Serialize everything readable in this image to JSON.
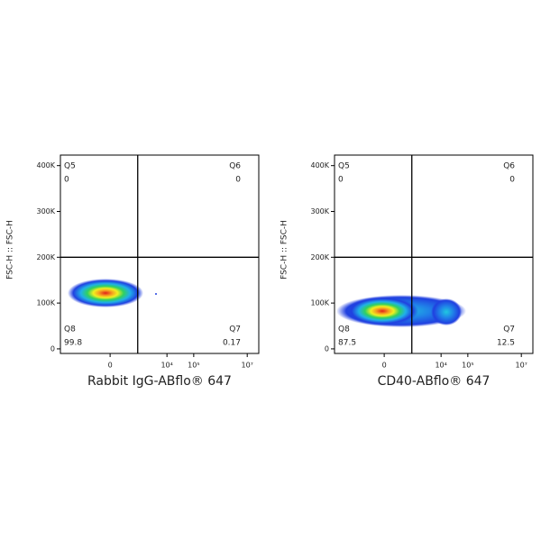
{
  "chart_data": [
    {
      "type": "density",
      "x_label": "Rabbit IgG-ABflo® 647",
      "y_label": "FSC-H :: FSC-H",
      "xscale": "biexponential",
      "xlim": [
        -5400,
        27000000
      ],
      "xticks": [
        0,
        {
          "value": 10000,
          "label": "10⁴"
        },
        {
          "value": 100000,
          "label": "10⁵"
        },
        {
          "value": 10000000,
          "label": "10⁷"
        }
      ],
      "ylim": [
        -10000,
        423000
      ],
      "yticks": [
        0,
        {
          "value": 100000,
          "label": "100K"
        },
        {
          "value": 200000,
          "label": "200K"
        },
        {
          "value": 300000,
          "label": "300K"
        },
        {
          "value": 400000,
          "label": "400K"
        }
      ],
      "gate": {
        "x": 800,
        "y": 200000
      },
      "quadrants": [
        {
          "name": "Q5",
          "value": 0
        },
        {
          "name": "Q6",
          "value": 0
        },
        {
          "name": "Q7",
          "value": 0.17
        },
        {
          "name": "Q8",
          "value": 99.8
        }
      ]
    },
    {
      "type": "density",
      "x_label": "CD40-ABflo® 647",
      "y_label": "FSC-H :: FSC-H",
      "xscale": "biexponential",
      "xlim": [
        -5400,
        27000000
      ],
      "xticks": [
        0,
        {
          "value": 10000,
          "label": "10⁴"
        },
        {
          "value": 100000,
          "label": "10⁵"
        },
        {
          "value": 10000000,
          "label": "10⁷"
        }
      ],
      "ylim": [
        -10000,
        423000
      ],
      "yticks": [
        0,
        {
          "value": 100000,
          "label": "100K"
        },
        {
          "value": 200000,
          "label": "200K"
        },
        {
          "value": 300000,
          "label": "300K"
        },
        {
          "value": 400000,
          "label": "400K"
        }
      ],
      "gate": {
        "x": 800,
        "y": 200000
      },
      "quadrants": [
        {
          "name": "Q5",
          "value": 0
        },
        {
          "name": "Q6",
          "value": 0
        },
        {
          "name": "Q7",
          "value": 12.5
        },
        {
          "name": "Q8",
          "value": 87.5
        }
      ]
    }
  ]
}
